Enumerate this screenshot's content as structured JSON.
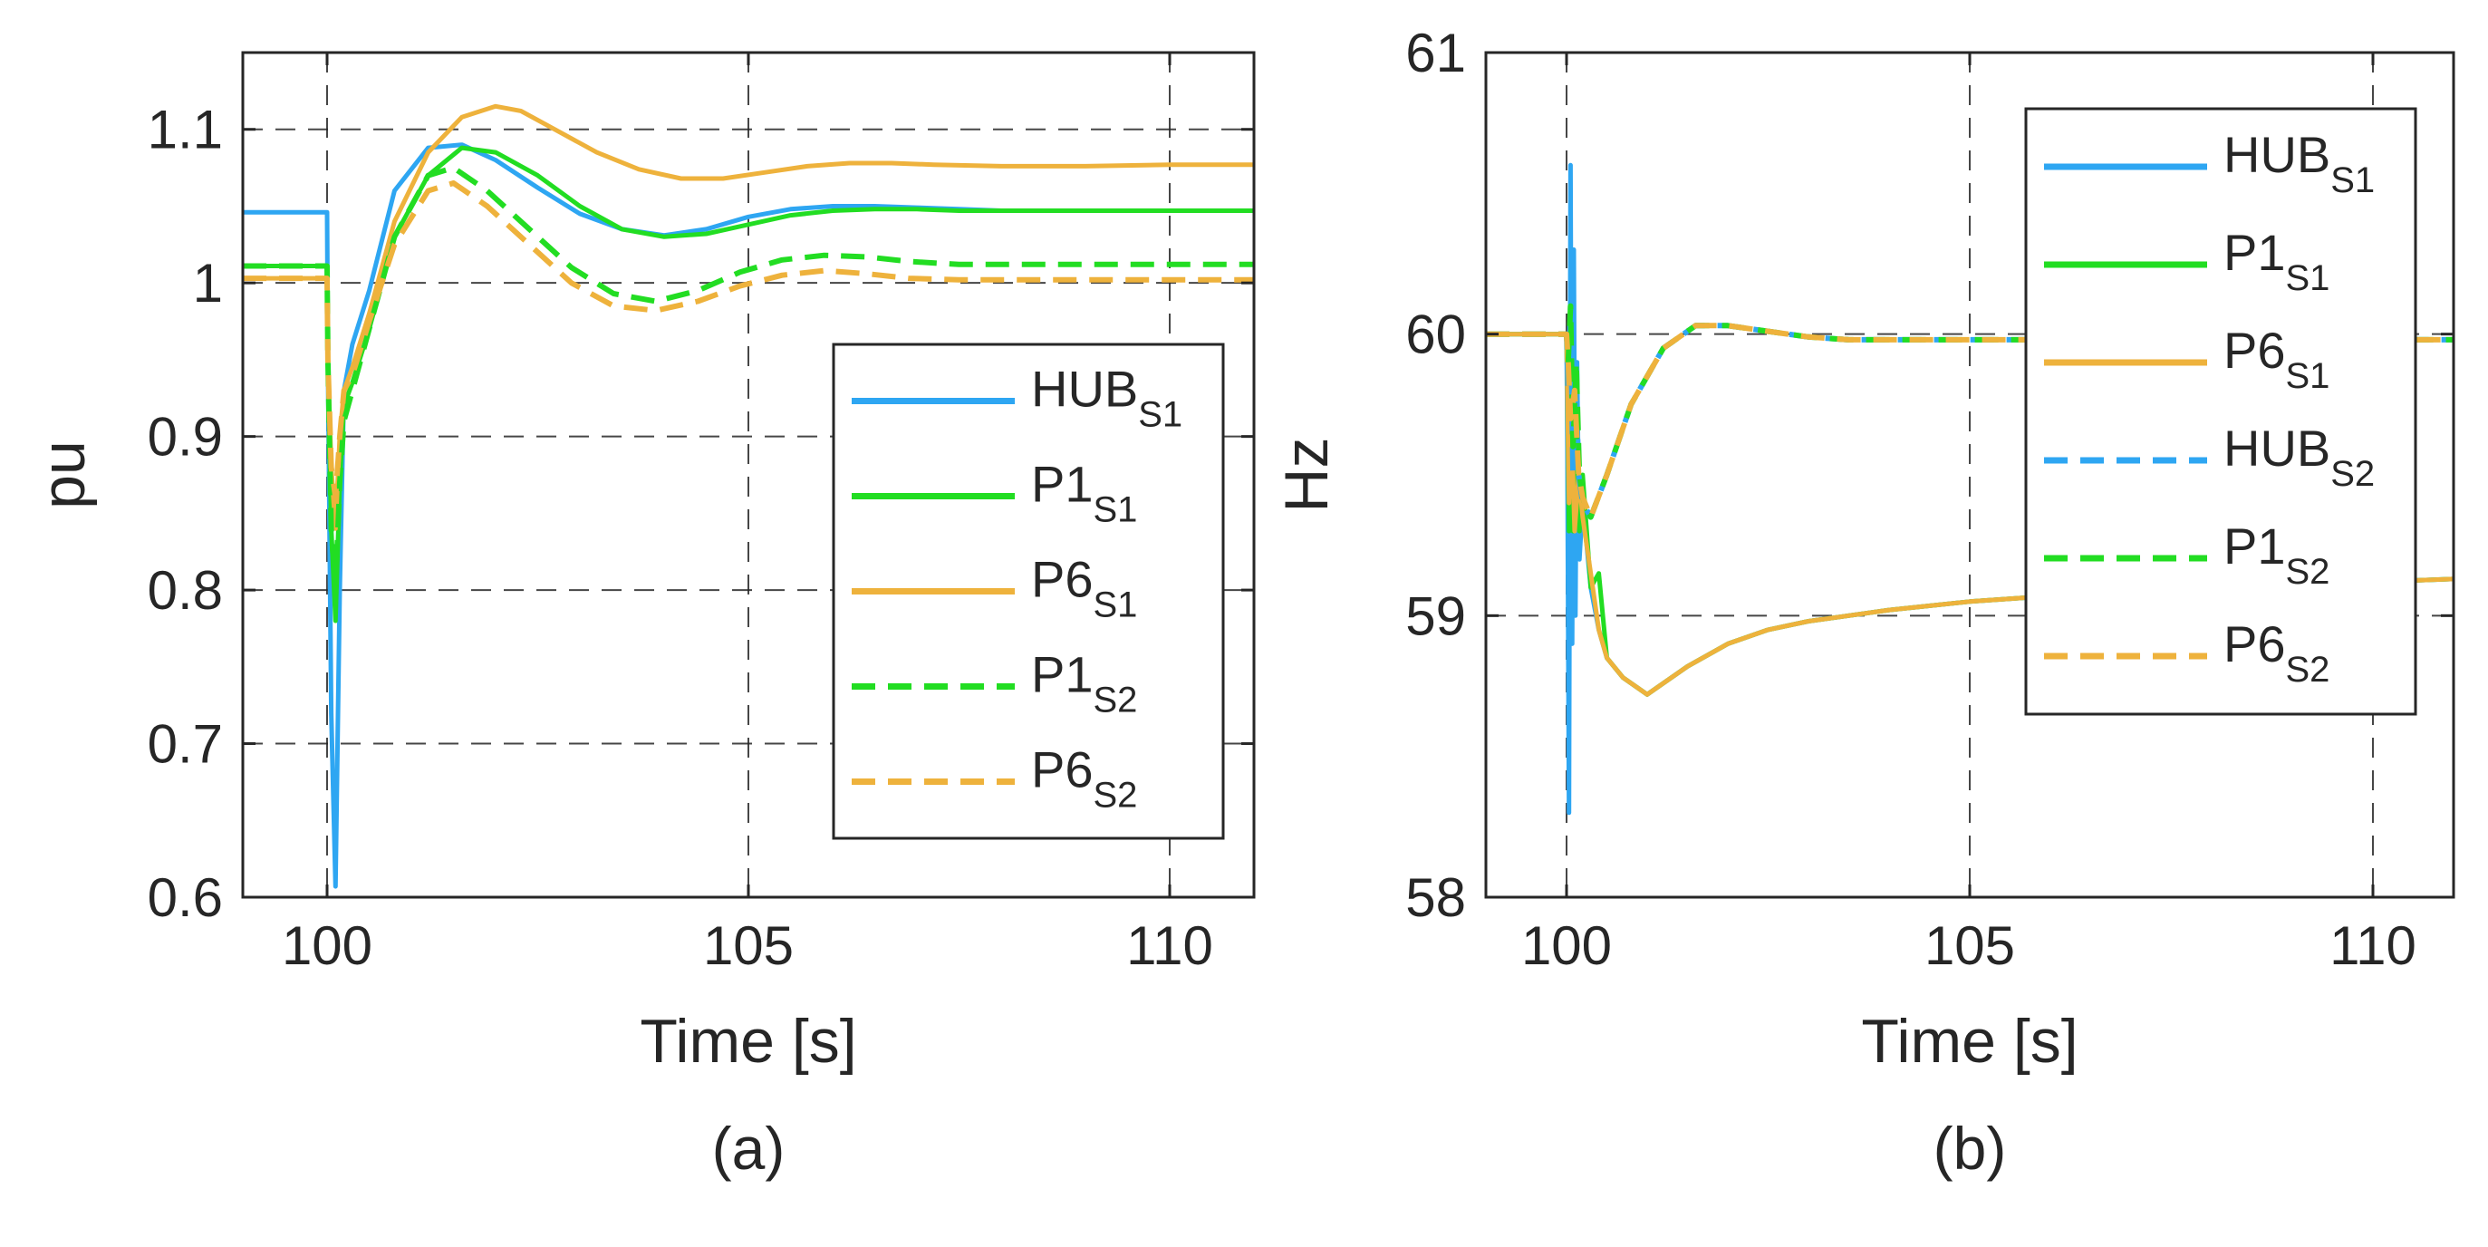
{
  "colors": {
    "hub": "#2ea6f2",
    "p1": "#22dd22",
    "p6": "#eeb23c",
    "axis": "#262626",
    "grid": "#262626",
    "background": "#ffffff"
  },
  "chart_data": [
    {
      "id": "a",
      "type": "line",
      "panel_label": "(a)",
      "title": "",
      "xlabel": "Time [s]",
      "ylabel": "pu",
      "xlim": [
        99,
        111
      ],
      "ylim": [
        0.6,
        1.15
      ],
      "xticks": [
        100,
        105,
        110
      ],
      "xtick_labels": [
        "100",
        "105",
        "110"
      ],
      "yticks": [
        0.6,
        0.7,
        0.8,
        0.9,
        1.0,
        1.1
      ],
      "ytick_labels": [
        "0.6",
        "0.7",
        "0.8",
        "0.9",
        "1",
        "1.1"
      ],
      "grid": true,
      "legend_position": "bottom-right",
      "legend": [
        {
          "name": "HUB",
          "sub": "S1",
          "color_key": "hub",
          "style": "solid"
        },
        {
          "name": "P1",
          "sub": "S1",
          "color_key": "p1",
          "style": "solid"
        },
        {
          "name": "P6",
          "sub": "S1",
          "color_key": "p6",
          "style": "solid"
        },
        {
          "name": "P1",
          "sub": "S2",
          "color_key": "p1",
          "style": "dashed"
        },
        {
          "name": "P6",
          "sub": "S2",
          "color_key": "p6",
          "style": "dashed"
        }
      ],
      "series": [
        {
          "name": "HUB_S1",
          "color_key": "hub",
          "style": "solid",
          "x": [
            99,
            100.0,
            100.01,
            100.05,
            100.1,
            100.15,
            100.2,
            100.3,
            100.5,
            100.8,
            101.2,
            101.6,
            102.0,
            102.5,
            103.0,
            103.5,
            104.0,
            104.5,
            105.0,
            105.5,
            106.0,
            106.5,
            107.0,
            107.5,
            108.0,
            109.0,
            110.0,
            111.0
          ],
          "y": [
            1.046,
            1.046,
            0.95,
            0.72,
            0.607,
            0.8,
            0.93,
            0.96,
            0.995,
            1.06,
            1.088,
            1.09,
            1.08,
            1.062,
            1.045,
            1.035,
            1.031,
            1.035,
            1.043,
            1.048,
            1.05,
            1.05,
            1.049,
            1.048,
            1.047,
            1.047,
            1.047,
            1.047
          ]
        },
        {
          "name": "P1_S1",
          "color_key": "p1",
          "style": "solid",
          "x": [
            99,
            100.0,
            100.01,
            100.05,
            100.1,
            100.15,
            100.2,
            100.3,
            100.5,
            100.8,
            101.2,
            101.6,
            102.0,
            102.5,
            103.0,
            103.5,
            104.0,
            104.5,
            105.0,
            105.5,
            106.0,
            106.5,
            107.0,
            107.5,
            108.0,
            109.0,
            110.0,
            111.0
          ],
          "y": [
            1.011,
            1.011,
            0.95,
            0.84,
            0.78,
            0.87,
            0.92,
            0.935,
            0.97,
            1.03,
            1.07,
            1.088,
            1.085,
            1.07,
            1.05,
            1.035,
            1.03,
            1.032,
            1.038,
            1.044,
            1.047,
            1.048,
            1.048,
            1.047,
            1.047,
            1.047,
            1.047,
            1.047
          ]
        },
        {
          "name": "P6_S1",
          "color_key": "p6",
          "style": "solid",
          "x": [
            99,
            100.0,
            100.01,
            100.05,
            100.1,
            100.15,
            100.2,
            100.3,
            100.5,
            100.8,
            101.2,
            101.6,
            102.0,
            102.3,
            102.7,
            103.2,
            103.7,
            104.2,
            104.7,
            105.2,
            105.7,
            106.2,
            106.7,
            107.2,
            108.0,
            109.0,
            110.0,
            111.0
          ],
          "y": [
            1.003,
            1.003,
            0.95,
            0.88,
            0.84,
            0.9,
            0.93,
            0.945,
            0.98,
            1.04,
            1.085,
            1.108,
            1.115,
            1.112,
            1.1,
            1.085,
            1.074,
            1.068,
            1.068,
            1.072,
            1.076,
            1.078,
            1.078,
            1.077,
            1.076,
            1.076,
            1.077,
            1.077
          ]
        },
        {
          "name": "P1_S2",
          "color_key": "p1",
          "style": "dashed",
          "x": [
            99,
            100.0,
            100.01,
            100.05,
            100.1,
            100.15,
            100.2,
            100.3,
            100.5,
            100.8,
            101.2,
            101.5,
            101.9,
            102.4,
            102.9,
            103.4,
            103.9,
            104.4,
            104.9,
            105.4,
            105.9,
            106.4,
            106.9,
            107.5,
            108.0,
            109.0,
            110.0,
            111.0
          ],
          "y": [
            1.011,
            1.011,
            0.95,
            0.84,
            0.8,
            0.87,
            0.91,
            0.93,
            0.97,
            1.03,
            1.07,
            1.075,
            1.06,
            1.035,
            1.01,
            0.993,
            0.988,
            0.995,
            1.007,
            1.015,
            1.018,
            1.017,
            1.014,
            1.012,
            1.012,
            1.012,
            1.012,
            1.012
          ]
        },
        {
          "name": "P6_S2",
          "color_key": "p6",
          "style": "dashed",
          "x": [
            99,
            100.0,
            100.01,
            100.05,
            100.1,
            100.15,
            100.2,
            100.3,
            100.5,
            100.8,
            101.2,
            101.5,
            101.9,
            102.4,
            102.9,
            103.4,
            103.9,
            104.4,
            104.9,
            105.4,
            105.9,
            106.4,
            106.9,
            107.5,
            108.0,
            109.0,
            110.0,
            111.0
          ],
          "y": [
            1.003,
            1.003,
            0.95,
            0.88,
            0.86,
            0.9,
            0.93,
            0.94,
            0.975,
            1.025,
            1.06,
            1.065,
            1.05,
            1.025,
            1.0,
            0.985,
            0.982,
            0.988,
            0.998,
            1.005,
            1.008,
            1.006,
            1.003,
            1.002,
            1.002,
            1.002,
            1.002,
            1.002
          ]
        }
      ]
    },
    {
      "id": "b",
      "type": "line",
      "panel_label": "(b)",
      "title": "",
      "xlabel": "Time [s]",
      "ylabel": "Hz",
      "xlim": [
        99,
        111
      ],
      "ylim": [
        58,
        61
      ],
      "xticks": [
        100,
        105,
        110
      ],
      "xtick_labels": [
        "100",
        "105",
        "110"
      ],
      "yticks": [
        58,
        59,
        60,
        61
      ],
      "ytick_labels": [
        "58",
        "59",
        "60",
        "61"
      ],
      "grid": true,
      "legend_position": "top-right",
      "legend": [
        {
          "name": "HUB",
          "sub": "S1",
          "color_key": "hub",
          "style": "solid"
        },
        {
          "name": "P1",
          "sub": "S1",
          "color_key": "p1",
          "style": "solid"
        },
        {
          "name": "P6",
          "sub": "S1",
          "color_key": "p6",
          "style": "solid"
        },
        {
          "name": "HUB",
          "sub": "S2",
          "color_key": "hub",
          "style": "dashed"
        },
        {
          "name": "P1",
          "sub": "S2",
          "color_key": "p1",
          "style": "dashed"
        },
        {
          "name": "P6",
          "sub": "S2",
          "color_key": "p6",
          "style": "dashed"
        }
      ],
      "series": [
        {
          "name": "HUB_S1",
          "color_key": "hub",
          "style": "solid",
          "x": [
            99,
            100.0,
            100.01,
            100.03,
            100.05,
            100.07,
            100.09,
            100.11,
            100.13,
            100.16,
            100.2,
            100.3,
            100.4,
            100.5,
            100.7,
            101.0,
            101.5,
            102.0,
            102.5,
            103.0,
            104.0,
            105.0,
            106.0,
            107.0,
            108.0,
            109.0,
            110.0,
            111.0
          ],
          "y": [
            60.0,
            60.0,
            59.6,
            58.3,
            60.6,
            58.9,
            60.3,
            59.0,
            59.9,
            59.2,
            59.4,
            59.1,
            58.95,
            58.85,
            58.78,
            58.72,
            58.82,
            58.9,
            58.95,
            58.98,
            59.02,
            59.05,
            59.07,
            59.08,
            59.09,
            59.1,
            59.12,
            59.13
          ]
        },
        {
          "name": "P1_S1",
          "color_key": "p1",
          "style": "solid",
          "x": [
            99,
            100.0,
            100.01,
            100.03,
            100.05,
            100.08,
            100.12,
            100.16,
            100.2,
            100.3,
            100.4,
            100.5,
            100.7,
            101.0,
            101.5,
            102.0,
            102.5,
            103.0,
            104.0,
            105.0,
            106.0,
            107.0,
            108.0,
            109.0,
            110.0,
            111.0
          ],
          "y": [
            60.0,
            60.0,
            59.8,
            59.3,
            59.9,
            59.3,
            59.7,
            59.3,
            59.5,
            59.1,
            59.15,
            58.85,
            58.78,
            58.72,
            58.82,
            58.9,
            58.95,
            58.98,
            59.02,
            59.05,
            59.07,
            59.08,
            59.09,
            59.1,
            59.12,
            59.13
          ]
        },
        {
          "name": "P6_S1",
          "color_key": "p6",
          "style": "solid",
          "x": [
            99,
            100.0,
            100.01,
            100.03,
            100.06,
            100.1,
            100.15,
            100.2,
            100.3,
            100.4,
            100.5,
            100.7,
            101.0,
            101.5,
            102.0,
            102.5,
            103.0,
            104.0,
            105.0,
            106.0,
            107.0,
            108.0,
            109.0,
            110.0,
            111.0
          ],
          "y": [
            60.0,
            60.0,
            59.8,
            59.4,
            59.7,
            59.3,
            59.5,
            59.35,
            59.15,
            58.95,
            58.85,
            58.78,
            58.72,
            58.82,
            58.9,
            58.95,
            58.98,
            59.02,
            59.05,
            59.07,
            59.08,
            59.09,
            59.1,
            59.12,
            59.13
          ]
        },
        {
          "name": "HUB_S2",
          "color_key": "hub",
          "style": "dashed",
          "x": [
            99,
            100.0,
            100.02,
            100.05,
            100.08,
            100.11,
            100.15,
            100.2,
            100.3,
            100.5,
            100.8,
            101.2,
            101.6,
            102.0,
            102.5,
            103.0,
            103.5,
            104.0,
            105.0,
            106.0,
            107.0,
            108.0,
            109.0,
            110.0,
            111.0
          ],
          "y": [
            60.0,
            60.0,
            59.8,
            60.1,
            59.5,
            59.9,
            59.5,
            59.4,
            59.35,
            59.5,
            59.75,
            59.95,
            60.03,
            60.03,
            60.01,
            59.99,
            59.98,
            59.98,
            59.98,
            59.98,
            59.98,
            59.98,
            59.98,
            59.98,
            59.98
          ]
        },
        {
          "name": "P1_S2",
          "color_key": "p1",
          "style": "dashed",
          "x": [
            99,
            100.0,
            100.02,
            100.05,
            100.08,
            100.12,
            100.16,
            100.2,
            100.3,
            100.5,
            100.8,
            101.2,
            101.6,
            102.0,
            102.5,
            103.0,
            103.5,
            104.0,
            105.0,
            106.0,
            107.0,
            108.0,
            109.0,
            110.0,
            111.0
          ],
          "y": [
            60.0,
            60.0,
            59.9,
            60.1,
            59.6,
            59.9,
            59.5,
            59.42,
            59.35,
            59.5,
            59.75,
            59.95,
            60.03,
            60.03,
            60.01,
            59.99,
            59.98,
            59.98,
            59.98,
            59.98,
            59.98,
            59.98,
            59.98,
            59.98,
            59.98
          ]
        },
        {
          "name": "P6_S2",
          "color_key": "p6",
          "style": "dashed",
          "x": [
            99,
            100.0,
            100.02,
            100.05,
            100.1,
            100.15,
            100.2,
            100.3,
            100.5,
            100.8,
            101.2,
            101.6,
            102.0,
            102.5,
            103.0,
            103.5,
            104.0,
            105.0,
            106.0,
            107.0,
            108.0,
            109.0,
            110.0,
            111.0
          ],
          "y": [
            60.0,
            60.0,
            59.9,
            59.7,
            59.8,
            59.5,
            59.42,
            59.35,
            59.5,
            59.75,
            59.95,
            60.03,
            60.03,
            60.01,
            59.99,
            59.98,
            59.98,
            59.98,
            59.98,
            59.98,
            59.98,
            59.98,
            59.98,
            59.98
          ]
        }
      ]
    }
  ]
}
